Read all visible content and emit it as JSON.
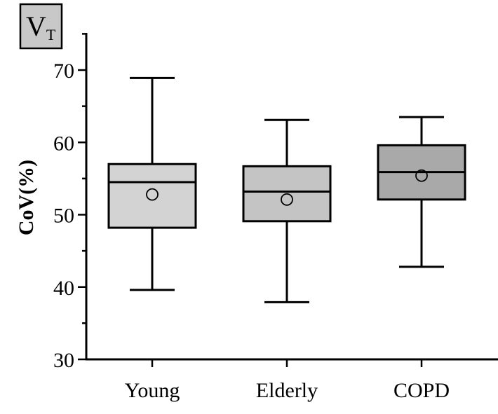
{
  "panel_label": {
    "main": "V",
    "subscript": "T",
    "fill": "#c8c8c8"
  },
  "chart_data": {
    "type": "box",
    "title": "",
    "xlabel": "",
    "ylabel": "CoV(%)",
    "ylim": [
      30,
      75
    ],
    "yticks": [
      30,
      40,
      50,
      60,
      70
    ],
    "y_minor_step": 5,
    "grid": false,
    "categories": [
      "Young",
      "Elderly",
      "COPD"
    ],
    "boxes": [
      {
        "category": "Young",
        "whisker_low": 39.6,
        "q1": 48.2,
        "median": 54.5,
        "q3": 57.0,
        "whisker_high": 68.9,
        "mean": 52.8,
        "fill": "#d3d3d3"
      },
      {
        "category": "Elderly",
        "whisker_low": 37.9,
        "q1": 49.1,
        "median": 53.2,
        "q3": 56.7,
        "whisker_high": 63.1,
        "mean": 52.1,
        "fill": "#c4c4c4"
      },
      {
        "category": "COPD",
        "whisker_low": 42.8,
        "q1": 52.1,
        "median": 55.9,
        "q3": 59.6,
        "whisker_high": 63.5,
        "mean": 55.4,
        "fill": "#a9a9a9"
      }
    ]
  }
}
